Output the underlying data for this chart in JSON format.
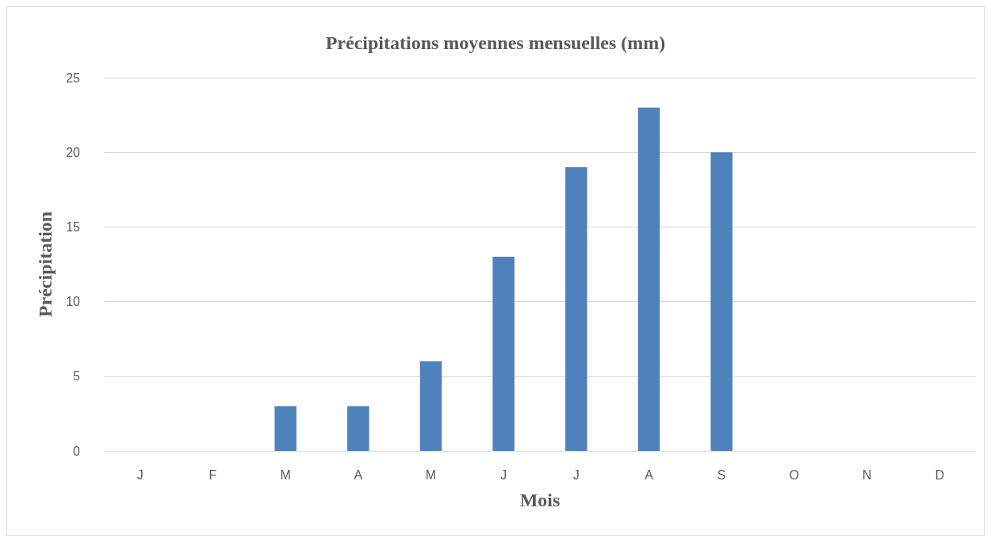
{
  "chart_data": {
    "type": "bar",
    "title": "Précipitations moyennes mensuelles (mm)",
    "xlabel": "Mois",
    "ylabel": "Précipitation",
    "categories": [
      "J",
      "F",
      "M",
      "A",
      "M",
      "J",
      "J",
      "A",
      "S",
      "O",
      "N",
      "D"
    ],
    "values": [
      0,
      0,
      3,
      3,
      6,
      13,
      19,
      23,
      20,
      0,
      0,
      0
    ],
    "color": "#4f81bd",
    "ylim": [
      0,
      25
    ],
    "yticks": [
      0,
      5,
      10,
      15,
      20,
      25
    ],
    "grid": "y"
  }
}
